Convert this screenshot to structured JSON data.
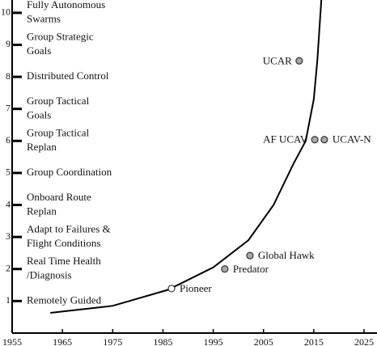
{
  "chart_data": {
    "type": "scatter",
    "x": [
      1986.7,
      1997.3,
      2002.3,
      2015.2,
      2017.1,
      2012.1
    ],
    "values": [
      1.39,
      2.0,
      2.42,
      6.04,
      6.04,
      8.5
    ],
    "labels": [
      "Pioneer",
      "Predator",
      "Global Hawk",
      "AF UCAV",
      "UCAV-N",
      "UCAR"
    ],
    "colors": [
      "#ffffff",
      "#a8a8a8",
      "#a8a8a8",
      "#a8a8a8",
      "#a8a8a8",
      "#a8a8a8"
    ],
    "curve": {
      "x": [
        1962.6,
        1975,
        1986,
        1995,
        2002,
        2007,
        2011,
        2013.4,
        2015,
        2015.7,
        2016.5
      ],
      "values": [
        0.63,
        0.85,
        1.35,
        2.05,
        2.9,
        4.0,
        5.3,
        6.0,
        7.3,
        8.5,
        10.4
      ],
      "color": "#000000"
    },
    "xlim": [
      1955,
      2025
    ],
    "xticks": [
      1955,
      1965,
      1975,
      1985,
      1995,
      2005,
      2015,
      2025
    ],
    "ylim": [
      0,
      10.4
    ],
    "yticks": [
      1,
      2,
      3,
      4,
      5,
      6,
      7,
      8,
      9,
      10
    ],
    "level_labels": [
      [
        "Remotely Guided"
      ],
      [
        "Real Time Health",
        "/Diagnosis"
      ],
      [
        "Adapt to Failures &",
        "Flight Conditions"
      ],
      [
        "Onboard Route",
        "Replan"
      ],
      [
        "Group Coordination"
      ],
      [
        "Group Tactical",
        "Replan"
      ],
      [
        "Group Tactical",
        "Goals"
      ],
      [
        "Distributed Control"
      ],
      [
        "Group Strategic",
        "Goals"
      ],
      [
        "Fully Autonomous",
        "Swarms"
      ]
    ]
  }
}
